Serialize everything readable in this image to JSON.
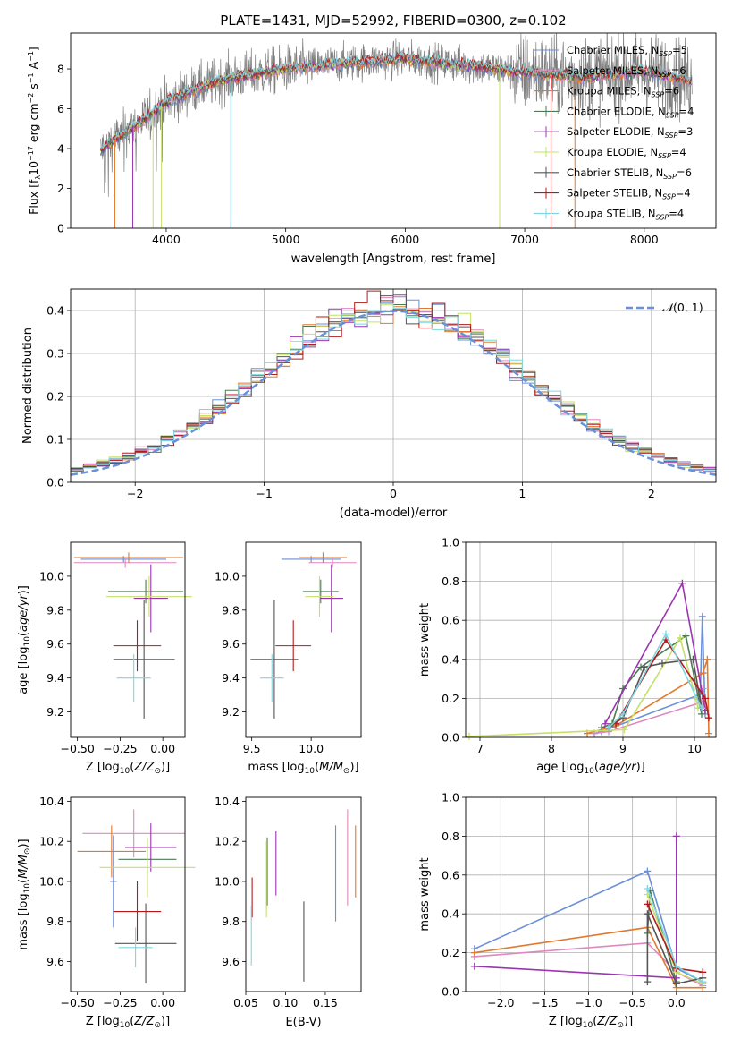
{
  "figure": {
    "title": "PLATE=1431, MJD=52992, FIBERID=0300, z=0.102"
  },
  "legend_entries": [
    {
      "label": "Chabrier MILES, N",
      "sub": "SSP",
      "suffix": "=5",
      "color": "#6b8fd8"
    },
    {
      "label": "Salpeter MILES, N",
      "sub": "SSP",
      "suffix": "=6",
      "color": "#e088bd"
    },
    {
      "label": "Kroupa MILES, N",
      "sub": "SSP",
      "suffix": "=6",
      "color": "#e07a2e"
    },
    {
      "label": "Chabrier ELODIE, N",
      "sub": "SSP",
      "suffix": "=4",
      "color": "#4d7a55"
    },
    {
      "label": "Salpeter ELODIE, N",
      "sub": "SSP",
      "suffix": "=3",
      "color": "#9b34b0"
    },
    {
      "label": "Kroupa ELODIE, N",
      "sub": "SSP",
      "suffix": "=4",
      "color": "#c6e06a"
    },
    {
      "label": "Chabrier STELIB, N",
      "sub": "SSP",
      "suffix": "=6",
      "color": "#555555"
    },
    {
      "label": "Salpeter STELIB, N",
      "sub": "SSP",
      "suffix": "=4",
      "color": "#b31b1b"
    },
    {
      "label": "Kroupa STELIB, N",
      "sub": "SSP",
      "suffix": "=4",
      "color": "#7fd6e0"
    }
  ],
  "chart_data": [
    {
      "id": "spectrum",
      "type": "line",
      "xlabel": "wavelength [Angstrom, rest frame]",
      "ylabel": "Flux [fλ10⁻¹⁷ erg cm⁻² s⁻¹ A⁻¹]",
      "xlim": [
        3200,
        8600
      ],
      "ylim": [
        0,
        9.8
      ],
      "xticks": [
        4000,
        5000,
        6000,
        7000,
        8000
      ],
      "yticks": [
        0,
        2,
        4,
        6,
        8
      ],
      "spectrum_knots": [
        [
          3450,
          3.9
        ],
        [
          3600,
          4.6
        ],
        [
          3800,
          5.4
        ],
        [
          4000,
          6.3
        ],
        [
          4200,
          6.9
        ],
        [
          4500,
          7.5
        ],
        [
          5000,
          8.0
        ],
        [
          5500,
          8.3
        ],
        [
          6000,
          8.5
        ],
        [
          6500,
          8.2
        ],
        [
          7000,
          7.8
        ],
        [
          7500,
          7.6
        ],
        [
          8000,
          7.9
        ],
        [
          8400,
          7.4
        ]
      ],
      "drops": [
        3570,
        3720,
        3890,
        3960,
        4540,
        6790,
        7220,
        7420
      ]
    },
    {
      "id": "residuals",
      "type": "histogram",
      "xlabel": "(data-model)/error",
      "ylabel": "Normed distribution",
      "xlim": [
        -2.5,
        2.5
      ],
      "ylim": [
        0,
        0.45
      ],
      "xticks": [
        -2,
        -1,
        0,
        1,
        2
      ],
      "yticks": [
        0.0,
        0.1,
        0.2,
        0.3,
        0.4
      ],
      "grid": true,
      "legend": "N(0,1)",
      "reference": "normal(0,1)",
      "bin_width": 0.1
    },
    {
      "id": "age_vs_Z",
      "type": "errorbar",
      "xlabel": "Z [log10(Z/Zsun)]",
      "ylabel": "age [log10(age/yr)]",
      "xlim": [
        -0.54,
        0.13
      ],
      "ylim": [
        9.05,
        10.2
      ],
      "xticks": [
        -0.5,
        -0.25,
        0.0
      ],
      "yticks": [
        9.2,
        9.4,
        9.6,
        9.8,
        10.0
      ],
      "points": [
        {
          "series": 0,
          "x": -0.23,
          "xerr": 0.25,
          "y": 10.1,
          "yerr": 0.02
        },
        {
          "series": 1,
          "x": -0.22,
          "xerr": 0.3,
          "y": 10.08,
          "yerr": 0.03
        },
        {
          "series": 2,
          "x": -0.2,
          "xerr": 0.32,
          "y": 10.11,
          "yerr": 0.03
        },
        {
          "series": 3,
          "x": -0.1,
          "xerr": 0.22,
          "y": 9.91,
          "yerr": 0.07
        },
        {
          "series": 4,
          "x": -0.07,
          "xerr": 0.1,
          "y": 9.87,
          "yerr": 0.2
        },
        {
          "series": 5,
          "x": -0.08,
          "xerr": 0.25,
          "y": 9.88,
          "yerr": 0.12
        },
        {
          "series": 6,
          "x": -0.11,
          "xerr": 0.18,
          "y": 9.51,
          "yerr": 0.35
        },
        {
          "series": 7,
          "x": -0.15,
          "xerr": 0.14,
          "y": 9.59,
          "yerr": 0.15
        },
        {
          "series": 8,
          "x": -0.17,
          "xerr": 0.1,
          "y": 9.4,
          "yerr": 0.14
        }
      ]
    },
    {
      "id": "age_vs_mass",
      "type": "errorbar",
      "xlabel": "mass [log10(M/Msun)]",
      "ylabel": "",
      "xlim": [
        9.45,
        10.42
      ],
      "ylim": [
        9.05,
        10.2
      ],
      "xticks": [
        9.5,
        10.0
      ],
      "yticks": [
        9.2,
        9.4,
        9.6,
        9.8,
        10.0
      ],
      "points": [
        {
          "series": 0,
          "x": 10.0,
          "xerr": 0.25,
          "y": 10.1,
          "yerr": 0.02
        },
        {
          "series": 1,
          "x": 10.18,
          "xerr": 0.2,
          "y": 10.08,
          "yerr": 0.03
        },
        {
          "series": 2,
          "x": 10.1,
          "xerr": 0.2,
          "y": 10.11,
          "yerr": 0.03
        },
        {
          "series": 3,
          "x": 10.08,
          "xerr": 0.15,
          "y": 9.91,
          "yerr": 0.07
        },
        {
          "series": 4,
          "x": 10.17,
          "xerr": 0.1,
          "y": 9.87,
          "yerr": 0.2
        },
        {
          "series": 5,
          "x": 10.07,
          "xerr": 0.12,
          "y": 9.88,
          "yerr": 0.12
        },
        {
          "series": 6,
          "x": 9.69,
          "xerr": 0.2,
          "y": 9.51,
          "yerr": 0.35
        },
        {
          "series": 7,
          "x": 9.85,
          "xerr": 0.15,
          "y": 9.59,
          "yerr": 0.15
        },
        {
          "series": 8,
          "x": 9.67,
          "xerr": 0.1,
          "y": 9.4,
          "yerr": 0.14
        }
      ]
    },
    {
      "id": "weight_vs_age",
      "type": "line",
      "xlabel": "age [log10(age/yr)]",
      "ylabel": "mass weight",
      "xlim": [
        6.8,
        10.3
      ],
      "ylim": [
        0,
        1.0
      ],
      "xticks": [
        7,
        8,
        9,
        10
      ],
      "yticks": [
        0.0,
        0.2,
        0.4,
        0.6,
        0.8,
        1.0
      ],
      "grid": true,
      "series": [
        {
          "series": 0,
          "x": [
            8.6,
            8.7,
            10.08,
            10.11,
            10.15
          ],
          "y": [
            0.02,
            0.03,
            0.22,
            0.62,
            0.12
          ]
        },
        {
          "series": 1,
          "x": [
            8.6,
            8.8,
            10.1,
            10.12,
            10.15
          ],
          "y": [
            0.02,
            0.03,
            0.18,
            0.25,
            0.15
          ]
        },
        {
          "series": 2,
          "x": [
            8.5,
            8.9,
            10.12,
            10.18,
            10.2
          ],
          "y": [
            0.02,
            0.06,
            0.33,
            0.4,
            0.02
          ]
        },
        {
          "series": 3,
          "x": [
            8.7,
            8.85,
            9.0,
            9.25,
            9.88,
            10.1
          ],
          "y": [
            0.05,
            0.07,
            0.25,
            0.36,
            0.52,
            0.12
          ]
        },
        {
          "series": 4,
          "x": [
            8.75,
            9.83,
            10.15
          ],
          "y": [
            0.07,
            0.79,
            0.14
          ]
        },
        {
          "series": 5,
          "x": [
            6.85,
            9.02,
            9.8,
            10.05
          ],
          "y": [
            0.005,
            0.04,
            0.51,
            0.15
          ]
        },
        {
          "series": 6,
          "x": [
            8.8,
            9.0,
            9.3,
            9.55,
            9.98,
            10.1
          ],
          "y": [
            0.05,
            0.1,
            0.36,
            0.38,
            0.4,
            0.15
          ]
        },
        {
          "series": 7,
          "x": [
            8.9,
            9.6,
            10.15,
            10.2
          ],
          "y": [
            0.07,
            0.5,
            0.2,
            0.1
          ]
        },
        {
          "series": 8,
          "x": [
            8.8,
            9.0,
            9.6,
            10.1
          ],
          "y": [
            0.05,
            0.12,
            0.53,
            0.15
          ]
        }
      ]
    },
    {
      "id": "mass_vs_Z",
      "type": "errorbar",
      "xlabel": "Z [log10(Z/Zsun)]",
      "ylabel": "mass [log10(M/Msun)]",
      "xlim": [
        -0.54,
        0.13
      ],
      "ylim": [
        9.45,
        10.42
      ],
      "xticks": [
        -0.5,
        -0.25,
        0.0
      ],
      "yticks": [
        9.6,
        9.8,
        10.0,
        10.2,
        10.4
      ],
      "points": [
        {
          "series": 0,
          "x": -0.29,
          "xerr": 0.02,
          "y": 10.0,
          "yerr": 0.23
        },
        {
          "series": 1,
          "x": -0.17,
          "xerr": 0.3,
          "y": 10.24,
          "yerr": 0.12
        },
        {
          "series": 2,
          "x": -0.3,
          "xerr": 0.2,
          "y": 10.15,
          "yerr": 0.13
        },
        {
          "series": 3,
          "x": -0.09,
          "xerr": 0.17,
          "y": 10.11,
          "yerr": 0.07
        },
        {
          "series": 4,
          "x": -0.07,
          "xerr": 0.15,
          "y": 10.17,
          "yerr": 0.12
        },
        {
          "series": 5,
          "x": -0.09,
          "xerr": 0.28,
          "y": 10.07,
          "yerr": 0.15
        },
        {
          "series": 6,
          "x": -0.1,
          "xerr": 0.18,
          "y": 9.69,
          "yerr": 0.2
        },
        {
          "series": 7,
          "x": -0.15,
          "xerr": 0.14,
          "y": 9.85,
          "yerr": 0.15
        },
        {
          "series": 8,
          "x": -0.16,
          "xerr": 0.1,
          "y": 9.67,
          "yerr": 0.1
        }
      ]
    },
    {
      "id": "mass_vs_ebv",
      "type": "errorbar",
      "xlabel": "E(B-V)",
      "ylabel": "",
      "xlim": [
        0.05,
        0.195
      ],
      "ylim": [
        9.45,
        10.42
      ],
      "xticks": [
        0.05,
        0.1,
        0.15
      ],
      "yticks": [
        9.6,
        9.8,
        10.0,
        10.2,
        10.4
      ],
      "points": [
        {
          "series": 0,
          "x": 0.163,
          "xerr": 0,
          "y": 10.04,
          "yerr": 0.24
        },
        {
          "series": 1,
          "x": 0.178,
          "xerr": 0,
          "y": 10.12,
          "yerr": 0.24
        },
        {
          "series": 2,
          "x": 0.188,
          "xerr": 0,
          "y": 10.1,
          "yerr": 0.18
        },
        {
          "series": 3,
          "x": 0.077,
          "xerr": 0,
          "y": 10.05,
          "yerr": 0.17
        },
        {
          "series": 4,
          "x": 0.088,
          "xerr": 0,
          "y": 10.09,
          "yerr": 0.16
        },
        {
          "series": 5,
          "x": 0.076,
          "xerr": 0,
          "y": 10.01,
          "yerr": 0.19
        },
        {
          "series": 6,
          "x": 0.123,
          "xerr": 0,
          "y": 9.7,
          "yerr": 0.2
        },
        {
          "series": 7,
          "x": 0.058,
          "xerr": 0,
          "y": 9.92,
          "yerr": 0.1
        },
        {
          "series": 8,
          "x": 0.057,
          "xerr": 0,
          "y": 9.73,
          "yerr": 0.15
        }
      ]
    },
    {
      "id": "weight_vs_Z",
      "type": "line",
      "xlabel": "Z [log10(Z/Zsun)]",
      "ylabel": "mass weight",
      "xlim": [
        -2.4,
        0.45
      ],
      "ylim": [
        0,
        1.0
      ],
      "xticks": [
        -2.0,
        -1.5,
        -1.0,
        -0.5,
        0.0
      ],
      "yticks": [
        0.0,
        0.2,
        0.4,
        0.6,
        0.8,
        1.0
      ],
      "grid": true,
      "series": [
        {
          "series": 0,
          "x": [
            -2.3,
            -0.33,
            0.0,
            0.3
          ],
          "y": [
            0.22,
            0.62,
            0.12,
            0.05
          ]
        },
        {
          "series": 1,
          "x": [
            -2.3,
            -0.33,
            0.0,
            0.3
          ],
          "y": [
            0.18,
            0.25,
            0.1,
            0.03
          ]
        },
        {
          "series": 2,
          "x": [
            -2.3,
            -0.33,
            0.0,
            0.3
          ],
          "y": [
            0.2,
            0.33,
            0.02,
            0.02
          ]
        },
        {
          "series": 3,
          "x": [
            -0.33,
            -0.3,
            0.0
          ],
          "y": [
            0.3,
            0.52,
            0.05
          ]
        },
        {
          "series": 4,
          "x": [
            -2.3,
            0.0,
            0.0
          ],
          "y": [
            0.13,
            0.07,
            0.8
          ]
        },
        {
          "series": 5,
          "x": [
            -0.33,
            0.0,
            0.3
          ],
          "y": [
            0.5,
            0.1,
            0.04
          ]
        },
        {
          "series": 6,
          "x": [
            -0.33,
            -0.33,
            0.0,
            0.3
          ],
          "y": [
            0.05,
            0.4,
            0.04,
            0.07
          ]
        },
        {
          "series": 7,
          "x": [
            -0.33,
            0.0,
            0.3
          ],
          "y": [
            0.45,
            0.12,
            0.1
          ]
        },
        {
          "series": 8,
          "x": [
            -0.33,
            0.0,
            0.3
          ],
          "y": [
            0.53,
            0.13,
            0.05
          ]
        }
      ]
    }
  ]
}
